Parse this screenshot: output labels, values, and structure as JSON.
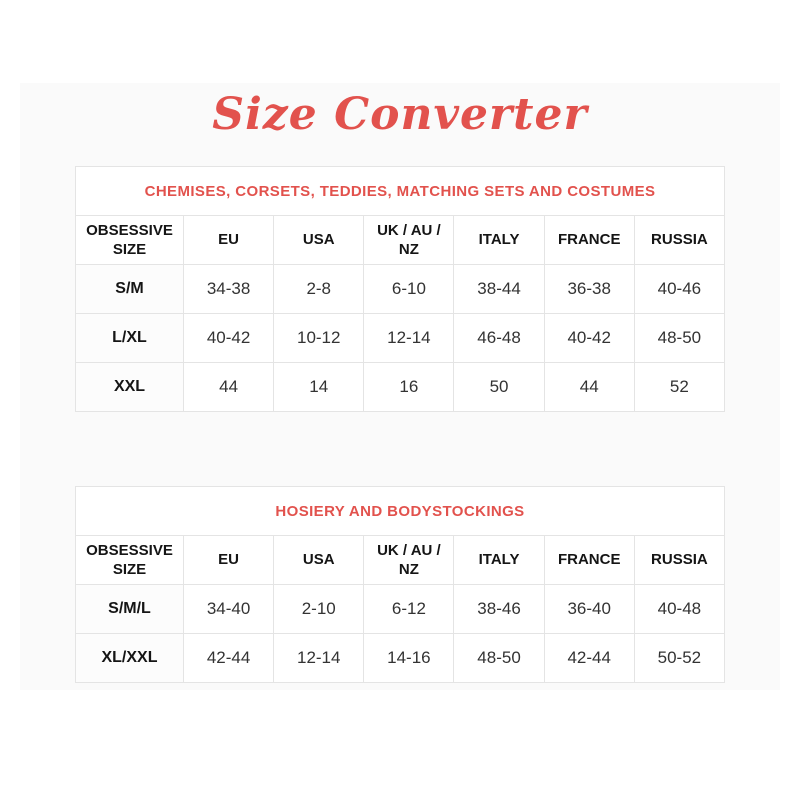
{
  "page": {
    "title": "Size Converter",
    "accent_color": "#e2524d",
    "border_color": "#e4e4e4"
  },
  "tables": [
    {
      "caption": "CHEMISES, CORSETS, TEDDIES, MATCHING SETS AND COSTUMES",
      "columns": [
        "OBSESSIVE SIZE",
        "EU",
        "USA",
        "UK / AU / NZ",
        "ITALY",
        "FRANCE",
        "RUSSIA"
      ],
      "rows": [
        [
          "S/M",
          "34-38",
          "2-8",
          "6-10",
          "38-44",
          "36-38",
          "40-46"
        ],
        [
          "L/XL",
          "40-42",
          "10-12",
          "12-14",
          "46-48",
          "40-42",
          "48-50"
        ],
        [
          "XXL",
          "44",
          "14",
          "16",
          "50",
          "44",
          "52"
        ]
      ]
    },
    {
      "caption": "HOSIERY AND BODYSTOCKINGS",
      "columns": [
        "OBSESSIVE SIZE",
        "EU",
        "USA",
        "UK / AU / NZ",
        "ITALY",
        "FRANCE",
        "RUSSIA"
      ],
      "rows": [
        [
          "S/M/L",
          "34-40",
          "2-10",
          "6-12",
          "38-46",
          "36-40",
          "40-48"
        ],
        [
          "XL/XXL",
          "42-44",
          "12-14",
          "14-16",
          "48-50",
          "42-44",
          "50-52"
        ]
      ]
    }
  ]
}
